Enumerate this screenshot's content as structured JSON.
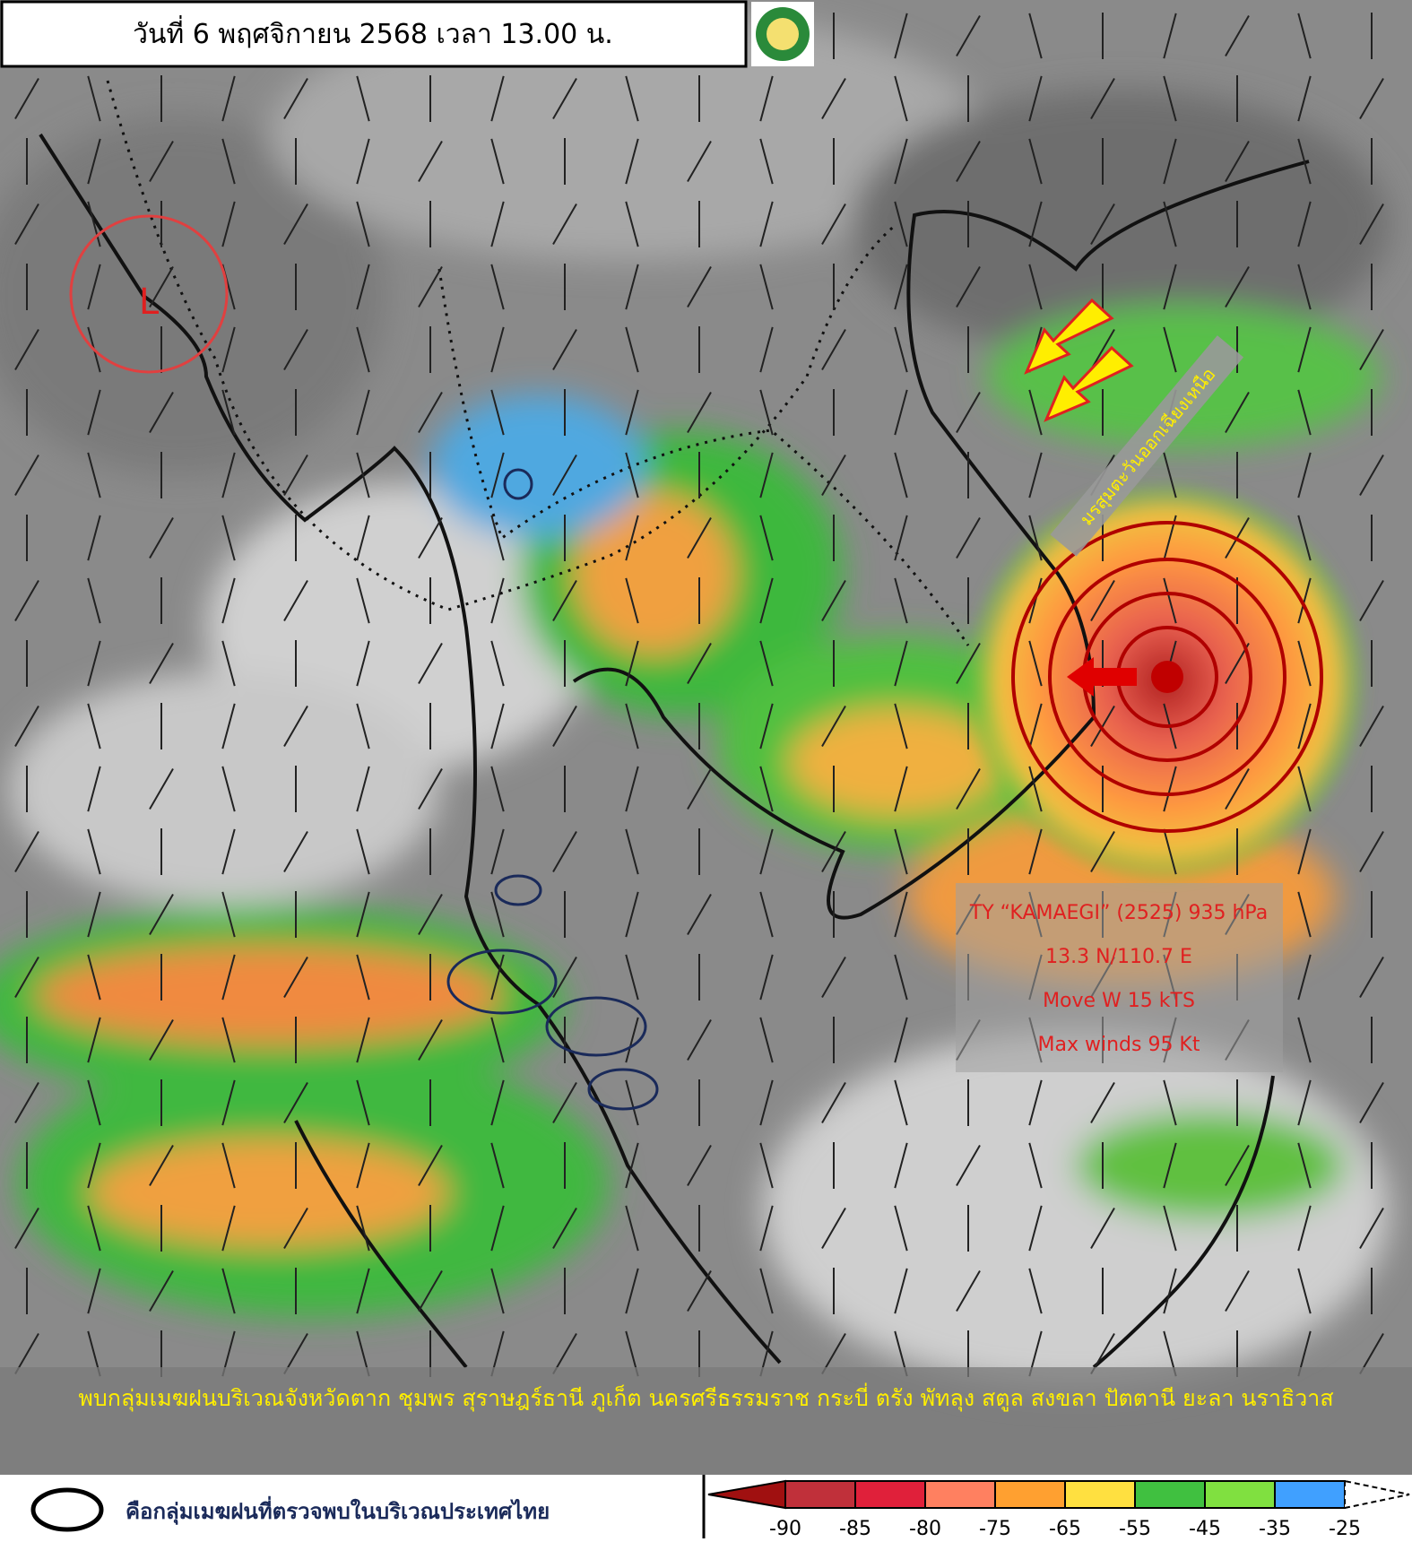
{
  "header": {
    "title": "วันที่ 6 พฤศจิกายน 2568 เวลา 13.00 น."
  },
  "low_label": "L",
  "monsoon_label": "มรสุมตะวันออกเฉียงเหนือ",
  "typhoon": {
    "lines": [
      "TY “KAMAEGI” (2525) 935 hPa",
      "13.3 N/110.7 E",
      "Move W 15 kTS",
      "Max winds 95 Kt"
    ]
  },
  "caption": "พบกลุ่มเมฆฝนบริเวณจังหวัดตาก ชุมพร สุราษฎร์ธานี ภูเก็ต นครศรีธรรมราช กระบี่ ตรัง พัทลุง สตูล สงขลา ปัตตานี ยะลา นราธิวาส",
  "legend": {
    "text": "คือกลุ่มเมฆฝนที่ตรวจพบในบริเวณประเทศไทย"
  },
  "colorbar": {
    "ticks": [
      -90,
      -85,
      -80,
      -75,
      -65,
      -55,
      -45,
      -35,
      -25
    ],
    "colors": [
      "#a01010",
      "#c0303a",
      "#e0203a",
      "#ff8060",
      "#ffa030",
      "#ffe040",
      "#40c040",
      "#80e040",
      "#40a0ff",
      "#ffffff"
    ]
  }
}
